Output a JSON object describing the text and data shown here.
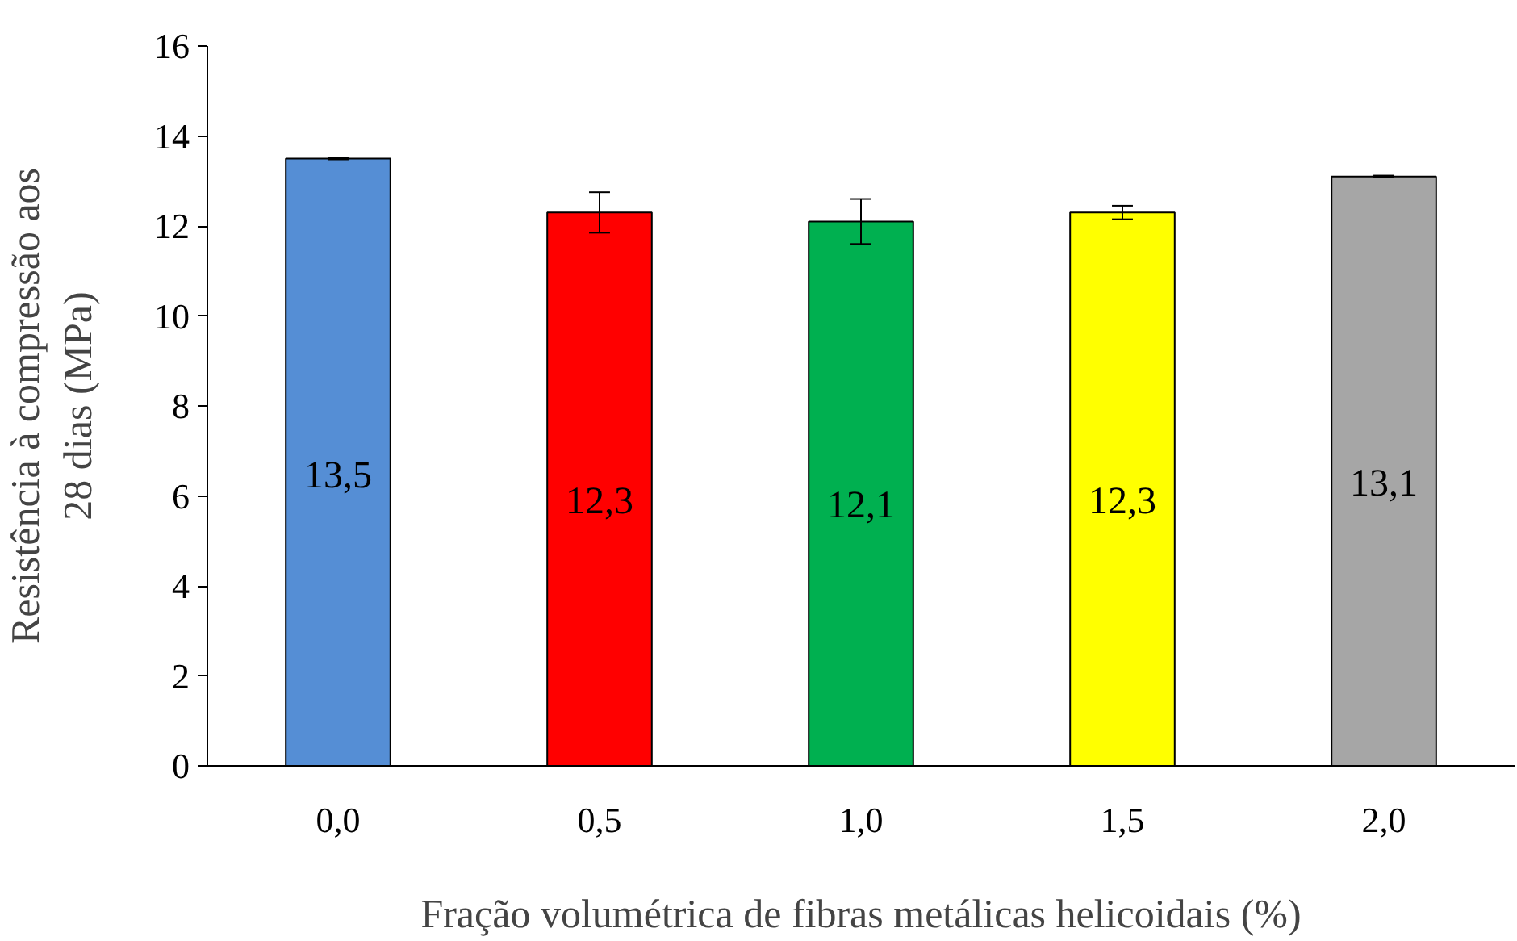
{
  "chart_data": {
    "type": "bar",
    "xlabel": "Fração volumétrica de fibras metálicas helicoidais (%)",
    "ylabel": "Resistência à compressão aos\n28 dias (MPa)",
    "categories": [
      "0,0",
      "0,5",
      "1,0",
      "1,5",
      "2,0"
    ],
    "values": [
      13.5,
      12.3,
      12.1,
      12.3,
      13.1
    ],
    "colors": [
      "#558ed5",
      "#ff0000",
      "#00b050",
      "#ffff00",
      "#a6a6a6"
    ],
    "errors": [
      0.02,
      0.45,
      0.5,
      0.15,
      0.02
    ],
    "value_labels": [
      "13,5",
      "12,3",
      "12,1",
      "12,3",
      "13,1"
    ],
    "ylim": [
      0,
      16
    ],
    "yticks": [
      0,
      2,
      4,
      6,
      8,
      10,
      12,
      14,
      16
    ],
    "grid": false
  }
}
